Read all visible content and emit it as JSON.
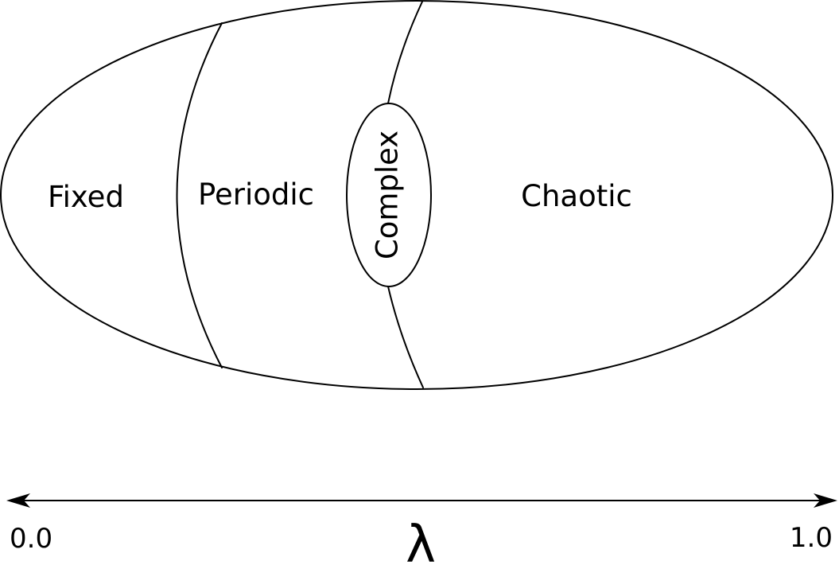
{
  "regions": {
    "fixed": "Fixed",
    "periodic": "Periodic",
    "complex": "Complex",
    "chaotic": "Chaotic"
  },
  "axis": {
    "variable": "λ",
    "min_label": "0.0",
    "max_label": "1.0"
  },
  "colors": {
    "stroke": "#000000",
    "background": "#ffffff"
  }
}
